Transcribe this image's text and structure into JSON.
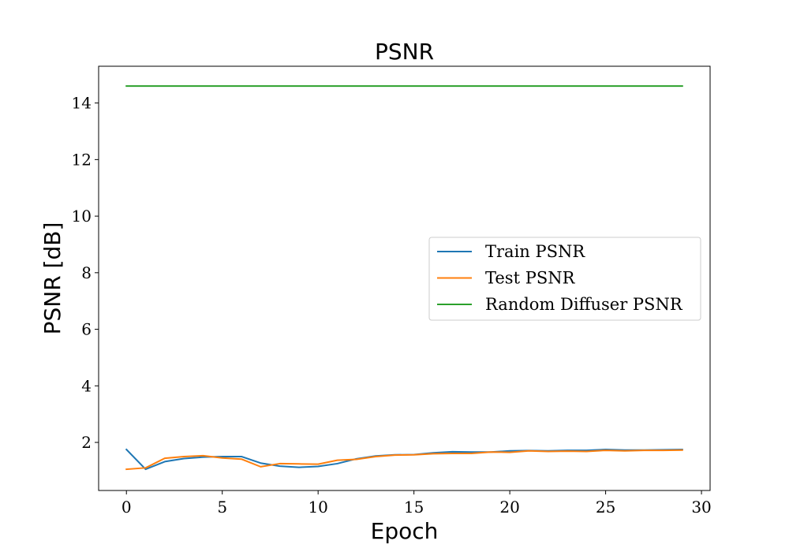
{
  "chart_data": {
    "type": "line",
    "title": "PSNR",
    "xlabel": "Epoch",
    "ylabel": "PSNR [dB]",
    "xlim": [
      -1.45,
      30.45
    ],
    "ylim": [
      0.3,
      15.3
    ],
    "xticks": [
      0,
      5,
      10,
      15,
      20,
      25,
      30
    ],
    "yticks": [
      2,
      4,
      6,
      8,
      10,
      12,
      14
    ],
    "grid": false,
    "legend_position": "center-right",
    "x": [
      0,
      1,
      2,
      3,
      4,
      5,
      6,
      7,
      8,
      9,
      10,
      11,
      12,
      13,
      14,
      15,
      16,
      17,
      18,
      19,
      20,
      21,
      22,
      23,
      24,
      25,
      26,
      27,
      28,
      29
    ],
    "series": [
      {
        "name": "Train PSNR",
        "color": "#1f77b4",
        "values": [
          1.75,
          1.05,
          1.32,
          1.43,
          1.48,
          1.5,
          1.5,
          1.27,
          1.16,
          1.12,
          1.15,
          1.25,
          1.42,
          1.52,
          1.56,
          1.57,
          1.63,
          1.67,
          1.66,
          1.66,
          1.7,
          1.71,
          1.7,
          1.72,
          1.72,
          1.75,
          1.73,
          1.73,
          1.74,
          1.75
        ]
      },
      {
        "name": "Test PSNR",
        "color": "#ff7f0e",
        "values": [
          1.05,
          1.1,
          1.44,
          1.5,
          1.53,
          1.45,
          1.41,
          1.14,
          1.25,
          1.24,
          1.23,
          1.37,
          1.4,
          1.5,
          1.55,
          1.56,
          1.6,
          1.61,
          1.61,
          1.66,
          1.65,
          1.7,
          1.68,
          1.69,
          1.68,
          1.72,
          1.7,
          1.72,
          1.72,
          1.73
        ]
      },
      {
        "name": "Random Diffuser PSNR",
        "color": "#2ca02c",
        "values": [
          14.6,
          14.6,
          14.6,
          14.6,
          14.6,
          14.6,
          14.6,
          14.6,
          14.6,
          14.6,
          14.6,
          14.6,
          14.6,
          14.6,
          14.6,
          14.6,
          14.6,
          14.6,
          14.6,
          14.6,
          14.6,
          14.6,
          14.6,
          14.6,
          14.6,
          14.6,
          14.6,
          14.6,
          14.6,
          14.6
        ]
      }
    ]
  }
}
